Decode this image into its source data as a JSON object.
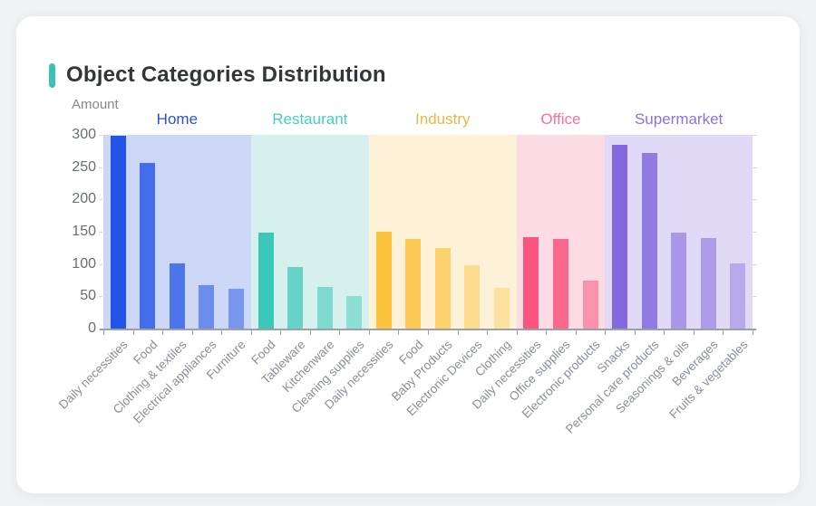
{
  "page": {
    "background": "#f0f2f4"
  },
  "card": {
    "title": "Object Categories Distribution",
    "accent_color": "#3cc2b5",
    "background": "#ffffff"
  },
  "chart_data": {
    "type": "bar",
    "title": "Object Categories Distribution",
    "xlabel": "",
    "ylabel": "Amount",
    "ylim": [
      0,
      300
    ],
    "yticks": [
      0,
      50,
      100,
      150,
      200,
      250,
      300
    ],
    "grid": false,
    "legend_position": "none",
    "axis_color": "#9aa0a6",
    "groups": [
      {
        "name": "Home",
        "label_color": "#2b50e0",
        "bar_color": "#2254e8",
        "band_color": "#ccd7f6",
        "categories": [
          "Daily necessities",
          "Food",
          "Clothing & textiles",
          "Electrical appliances",
          "Furniture"
        ],
        "values": [
          298,
          257,
          101,
          67,
          62
        ],
        "bar_opacities": [
          1,
          0.81,
          0.75,
          0.56,
          0.49
        ]
      },
      {
        "name": "Restaurant",
        "label_color": "#45cfc0",
        "bar_color": "#3cc8b8",
        "band_color": "#d6f1ed",
        "categories": [
          "Food",
          "Tableware",
          "Kitchenware",
          "Cleaning supplies"
        ],
        "values": [
          148,
          96,
          65,
          50
        ],
        "bar_opacities": [
          1,
          0.73,
          0.57,
          0.47
        ]
      },
      {
        "name": "Industry",
        "label_color": "#e9b64b",
        "bar_color": "#fcc33c",
        "band_color": "#fdf2d7",
        "categories": [
          "Daily necessities",
          "Food",
          "Baby Products",
          "Electronic Devices",
          "Clothing"
        ],
        "values": [
          150,
          139,
          125,
          98,
          63
        ],
        "bar_opacities": [
          1,
          0.85,
          0.68,
          0.47,
          0.36
        ]
      },
      {
        "name": "Office",
        "label_color": "#f7719a",
        "bar_color": "#f9557e",
        "band_color": "#fcdbe5",
        "categories": [
          "Daily necessities",
          "Office supplies",
          "Electronic products"
        ],
        "values": [
          142,
          139,
          75
        ],
        "bar_opacities": [
          1,
          0.86,
          0.54
        ]
      },
      {
        "name": "Supermarket",
        "label_color": "#8a72e4",
        "bar_color": "#8468e0",
        "band_color": "#e1daf7",
        "categories": [
          "Snacks",
          "Personal care products",
          "Seasonings & oils",
          "Beverages",
          "Fruits & vegetables"
        ],
        "values": [
          285,
          272,
          149,
          140,
          101
        ],
        "bar_opacities": [
          1,
          0.85,
          0.59,
          0.54,
          0.44
        ]
      }
    ]
  }
}
